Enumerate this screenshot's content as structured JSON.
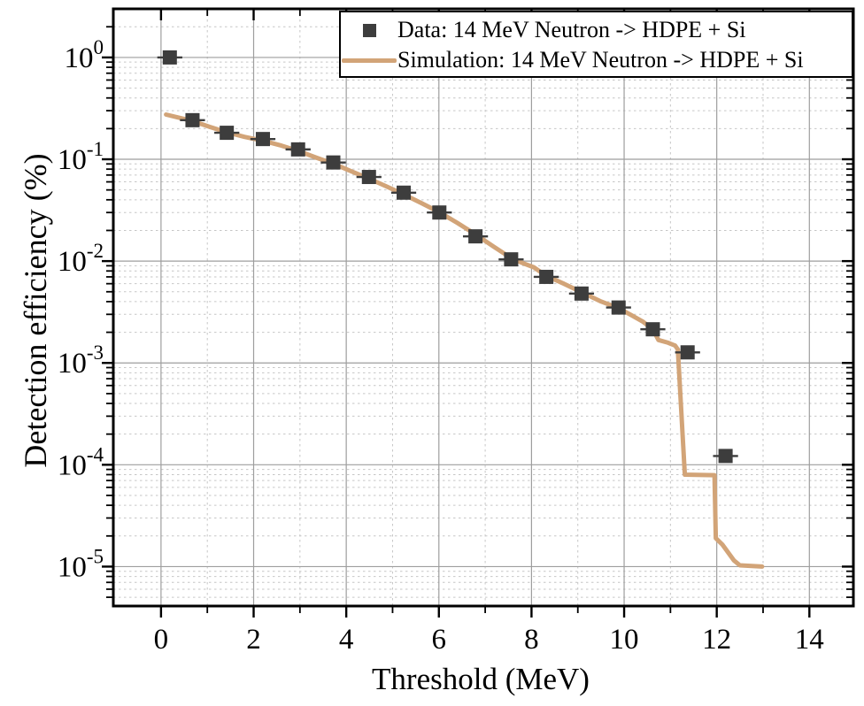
{
  "colors": {
    "data_marker": "#3d3d3d",
    "simulation_line": "#d2a478",
    "grid_major": "#9e9e9e",
    "grid_minor": "#c6c6c6",
    "frame": "#000000",
    "background": "#ffffff",
    "text": "#000000"
  },
  "legend": {
    "entries": [
      {
        "label": "Data: 14 MeV Neutron -> HDPE + Si",
        "marker": "square",
        "color": "#3d3d3d"
      },
      {
        "label": "Simulation: 14 MeV Neutron -> HDPE + Si",
        "marker": "line",
        "color": "#d2a478"
      }
    ]
  },
  "chart_data": {
    "type": "scatter",
    "title": "",
    "xlabel": "Threshold (MeV)",
    "ylabel": "Detection efficiency (%)",
    "x_axis": {
      "scale": "linear",
      "min": -1.03,
      "max": 14.95,
      "major_ticks": [
        0,
        2,
        4,
        6,
        8,
        10,
        12,
        14
      ],
      "minor_ticks": [
        -1,
        1,
        3,
        5,
        7,
        9,
        11,
        13
      ],
      "grid_major": true,
      "grid_minor": true
    },
    "y_axis": {
      "scale": "log",
      "min": 4.1e-06,
      "max": 3.0,
      "decade_exponents": [
        0,
        -1,
        -2,
        -3,
        -4,
        -5
      ],
      "tick_base": "10",
      "grid_major": true,
      "grid_minor": true
    },
    "legend_position": "top-right",
    "series": [
      {
        "name": "Data: 14 MeV Neutron -> HDPE + Si",
        "type": "scatter",
        "marker": "square",
        "marker_size": 16,
        "color": "#3d3d3d",
        "x_error": 0.27,
        "points": [
          [
            0.19,
            1.0
          ],
          [
            0.68,
            0.242
          ],
          [
            1.42,
            0.182
          ],
          [
            2.2,
            0.158
          ],
          [
            2.96,
            0.125
          ],
          [
            3.72,
            0.093
          ],
          [
            4.49,
            0.067
          ],
          [
            5.24,
            0.047
          ],
          [
            6.01,
            0.03
          ],
          [
            6.79,
            0.0175
          ],
          [
            7.56,
            0.0104
          ],
          [
            8.32,
            0.007
          ],
          [
            9.08,
            0.0048
          ],
          [
            9.88,
            0.0035
          ],
          [
            10.62,
            0.00214
          ],
          [
            11.37,
            0.00127
          ],
          [
            12.19,
            0.000122
          ]
        ]
      },
      {
        "name": "Simulation: 14 MeV Neutron -> HDPE + Si",
        "type": "line",
        "line_width": 5,
        "color": "#d2a478",
        "points": [
          [
            0.11,
            0.275
          ],
          [
            0.45,
            0.252
          ],
          [
            0.7,
            0.236
          ],
          [
            1.05,
            0.208
          ],
          [
            1.42,
            0.184
          ],
          [
            1.8,
            0.166
          ],
          [
            2.2,
            0.152
          ],
          [
            2.6,
            0.136
          ],
          [
            2.96,
            0.121
          ],
          [
            3.35,
            0.104
          ],
          [
            3.72,
            0.0905
          ],
          [
            4.1,
            0.0765
          ],
          [
            4.49,
            0.0645
          ],
          [
            4.88,
            0.0538
          ],
          [
            5.24,
            0.0452
          ],
          [
            5.62,
            0.0372
          ],
          [
            6.01,
            0.0302
          ],
          [
            6.4,
            0.0237
          ],
          [
            6.79,
            0.0183
          ],
          [
            7.18,
            0.0139
          ],
          [
            7.56,
            0.0107
          ],
          [
            7.8,
            0.0096
          ],
          [
            8.05,
            0.0087
          ],
          [
            8.32,
            0.00715
          ],
          [
            8.7,
            0.006
          ],
          [
            9.08,
            0.00495
          ],
          [
            9.48,
            0.00405
          ],
          [
            9.88,
            0.00345
          ],
          [
            10.15,
            0.00295
          ],
          [
            10.4,
            0.00255
          ],
          [
            10.62,
            0.00213
          ],
          [
            10.74,
            0.00168
          ],
          [
            10.95,
            0.00158
          ],
          [
            11.1,
            0.00148
          ],
          [
            11.16,
            0.00136
          ],
          [
            11.31,
            8e-05
          ],
          [
            11.95,
            7.9e-05
          ],
          [
            11.98,
            1.9e-05
          ],
          [
            12.12,
            1.65e-05
          ],
          [
            12.37,
            1.15e-05
          ],
          [
            12.5,
            1.03e-05
          ],
          [
            12.98,
            1e-05
          ]
        ]
      }
    ]
  }
}
